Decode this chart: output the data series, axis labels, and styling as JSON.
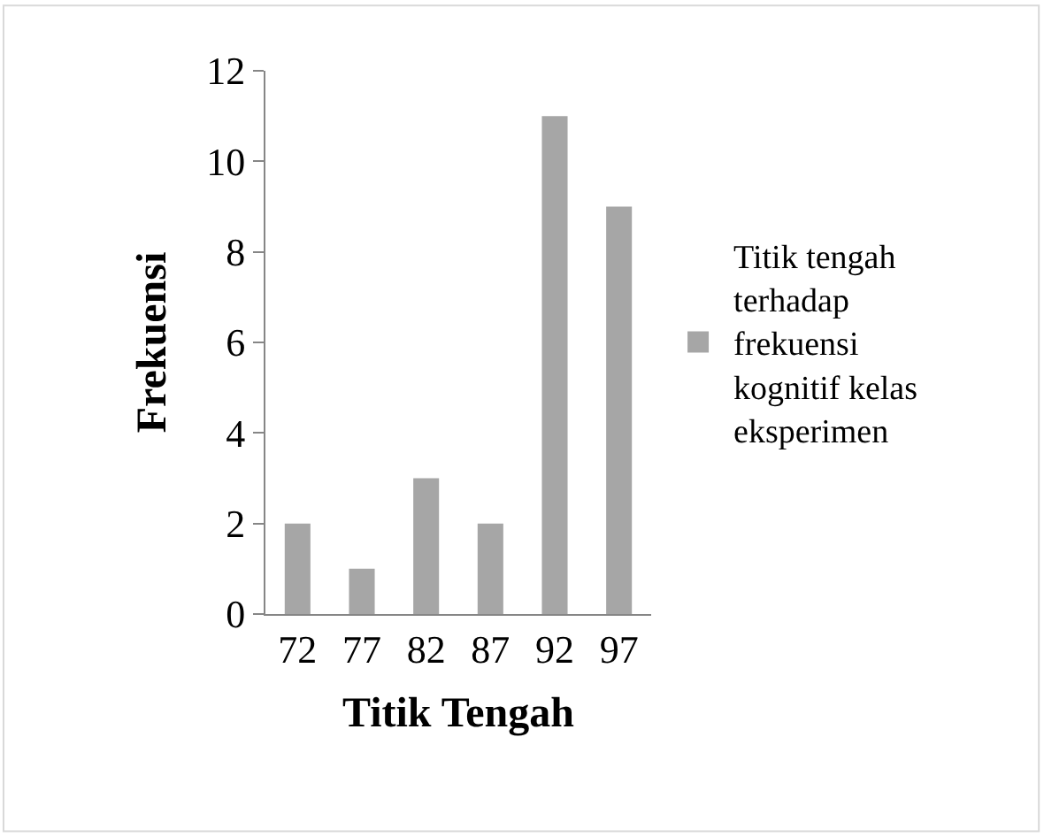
{
  "chart_data": {
    "type": "bar",
    "xlabel": "Titik Tengah",
    "ylabel": "Frekuensi",
    "categories": [
      "72",
      "77",
      "82",
      "87",
      "92",
      "97"
    ],
    "series": [
      {
        "name": "Titik tengah terhadap frekuensi kognitif kelas eksperimen",
        "color": "#a6a6a6",
        "values": [
          2,
          1,
          3,
          2,
          11,
          9
        ]
      }
    ],
    "ylim": [
      0,
      12
    ],
    "yticks": [
      0,
      2,
      4,
      6,
      8,
      10,
      12
    ],
    "legend": "right"
  }
}
